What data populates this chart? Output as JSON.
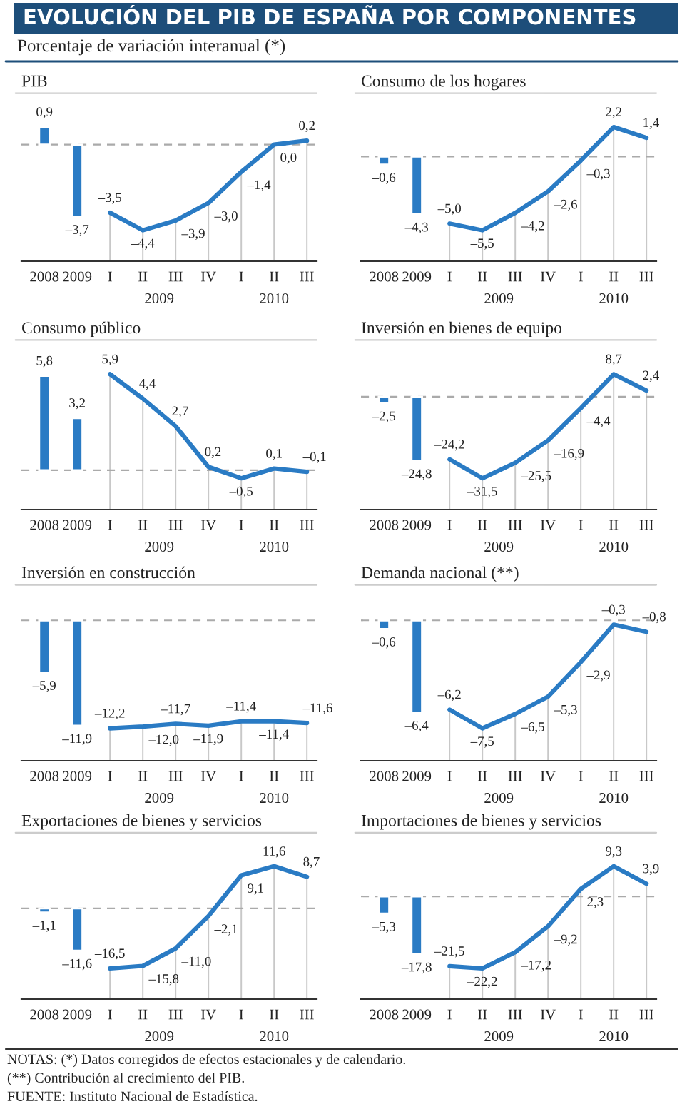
{
  "chart_data": [
    {
      "type": "other",
      "title": "EVOLUCIÓN DEL PIB DE ESPAÑA POR COMPONENTES",
      "subtitle": "Porcentaje de variación interanual (*)",
      "annotations": [
        "NOTAS: (*) Datos corregidos de efectos estacionales y de calendario.",
        "(**) Contribución al crecimiento del PIB.",
        "FUENTE: Instituto Nacional de Estadística."
      ]
    },
    {
      "type": "bar",
      "grid": "x",
      "title": "PIB",
      "categories": [
        "2008",
        "2009",
        "I",
        "II",
        "III",
        "IV",
        "I",
        "II",
        "III"
      ],
      "annotations": [
        "2009",
        "2010"
      ],
      "ref_lines": [
        {
          "axis": "y",
          "value": 0,
          "color": "#aaaaaa",
          "line_style": "dashed"
        }
      ],
      "series": [
        {
          "type": "bar",
          "color": "#2a7bc4",
          "values": [
            0.9,
            -3.7,
            null,
            null,
            null,
            null,
            null,
            null,
            null
          ],
          "value_labels": [
            "0,9",
            "–3,7",
            null,
            null,
            null,
            null,
            null,
            null,
            null
          ]
        },
        {
          "type": "line",
          "color": "#2a7bc4",
          "values": [
            null,
            null,
            -3.5,
            -4.4,
            -3.9,
            -3.0,
            -1.4,
            0.0,
            0.2
          ],
          "value_labels": [
            null,
            null,
            "–3,5",
            "–4,4",
            "–3,9",
            "–3,0",
            "–1,4",
            "0,0",
            "0,2"
          ]
        }
      ]
    },
    {
      "type": "bar",
      "grid": "x",
      "title": "Consumo de los hogares",
      "categories": [
        "2008",
        "2009",
        "I",
        "II",
        "III",
        "IV",
        "I",
        "II",
        "III"
      ],
      "annotations": [
        "2009",
        "2010"
      ],
      "ref_lines": [
        {
          "axis": "y",
          "value": 0,
          "color": "#aaaaaa",
          "line_style": "dashed"
        }
      ],
      "series": [
        {
          "type": "bar",
          "color": "#2a7bc4",
          "values": [
            -0.6,
            -4.3,
            null,
            null,
            null,
            null,
            null,
            null,
            null
          ],
          "value_labels": [
            "–0,6",
            "–4,3",
            null,
            null,
            null,
            null,
            null,
            null,
            null
          ]
        },
        {
          "type": "line",
          "color": "#2a7bc4",
          "values": [
            null,
            null,
            -5.0,
            -5.5,
            -4.2,
            -2.6,
            -0.3,
            2.2,
            1.4
          ],
          "value_labels": [
            null,
            null,
            "–5,0",
            "–5,5",
            "–4,2",
            "–2,6",
            "–0,3",
            "2,2",
            "1,4"
          ]
        }
      ]
    },
    {
      "type": "bar",
      "grid": "x",
      "title": "Consumo público",
      "categories": [
        "2008",
        "2009",
        "I",
        "II",
        "III",
        "IV",
        "I",
        "II",
        "III"
      ],
      "annotations": [
        "2009",
        "2010"
      ],
      "ref_lines": [
        {
          "axis": "y",
          "value": 0,
          "color": "#aaaaaa",
          "line_style": "dashed"
        }
      ],
      "series": [
        {
          "type": "bar",
          "color": "#2a7bc4",
          "values": [
            5.8,
            3.2,
            null,
            null,
            null,
            null,
            null,
            null,
            null
          ],
          "value_labels": [
            "5,8",
            "3,2",
            null,
            null,
            null,
            null,
            null,
            null,
            null
          ]
        },
        {
          "type": "line",
          "color": "#2a7bc4",
          "values": [
            null,
            null,
            5.9,
            4.4,
            2.7,
            0.2,
            -0.5,
            0.1,
            -0.1
          ],
          "value_labels": [
            null,
            null,
            "5,9",
            "4,4",
            "2,7",
            "0,2",
            "–0,5",
            "0,1",
            "–0,1"
          ]
        }
      ]
    },
    {
      "type": "bar",
      "grid": "x",
      "title": "Inversión en bienes de equipo",
      "categories": [
        "2008",
        "2009",
        "I",
        "II",
        "III",
        "IV",
        "I",
        "II",
        "III"
      ],
      "annotations": [
        "2009",
        "2010"
      ],
      "ref_lines": [
        {
          "axis": "y",
          "value": 0,
          "color": "#aaaaaa",
          "line_style": "dashed"
        }
      ],
      "series": [
        {
          "type": "bar",
          "color": "#2a7bc4",
          "values": [
            -2.5,
            -24.8,
            null,
            null,
            null,
            null,
            null,
            null,
            null
          ],
          "value_labels": [
            "–2,5",
            "–24,8",
            null,
            null,
            null,
            null,
            null,
            null,
            null
          ]
        },
        {
          "type": "line",
          "color": "#2a7bc4",
          "values": [
            null,
            null,
            -24.2,
            -31.5,
            -25.5,
            -16.9,
            -4.4,
            8.7,
            2.4
          ],
          "value_labels": [
            null,
            null,
            "–24,2",
            "–31,5",
            "–25,5",
            "–16,9",
            "–4,4",
            "8,7",
            "2,4"
          ]
        }
      ]
    },
    {
      "type": "bar",
      "grid": "x",
      "title": "Inversión en construcción",
      "categories": [
        "2008",
        "2009",
        "I",
        "II",
        "III",
        "IV",
        "I",
        "II",
        "III"
      ],
      "annotations": [
        "2009",
        "2010"
      ],
      "ref_lines": [
        {
          "axis": "y",
          "value": 0,
          "color": "#aaaaaa",
          "line_style": "dashed"
        }
      ],
      "series": [
        {
          "type": "bar",
          "color": "#2a7bc4",
          "values": [
            -5.9,
            -11.9,
            null,
            null,
            null,
            null,
            null,
            null,
            null
          ],
          "value_labels": [
            "–5,9",
            "–11,9",
            null,
            null,
            null,
            null,
            null,
            null,
            null
          ]
        },
        {
          "type": "line",
          "color": "#2a7bc4",
          "values": [
            null,
            null,
            -12.2,
            -12.0,
            -11.7,
            -11.9,
            -11.4,
            -11.4,
            -11.6
          ],
          "value_labels": [
            null,
            null,
            "–12,2",
            "–12,0",
            "–11,7",
            "–11,9",
            "–11,4",
            "–11,4",
            "–11,6"
          ]
        }
      ]
    },
    {
      "type": "bar",
      "grid": "x",
      "title": "Demanda nacional (**)",
      "categories": [
        "2008",
        "2009",
        "I",
        "II",
        "III",
        "IV",
        "I",
        "II",
        "III"
      ],
      "annotations": [
        "2009",
        "2010"
      ],
      "ref_lines": [
        {
          "axis": "y",
          "value": 0,
          "color": "#aaaaaa",
          "line_style": "dashed"
        }
      ],
      "series": [
        {
          "type": "bar",
          "color": "#2a7bc4",
          "values": [
            -0.6,
            -6.4,
            null,
            null,
            null,
            null,
            null,
            null,
            null
          ],
          "value_labels": [
            "–0,6",
            "–6,4",
            null,
            null,
            null,
            null,
            null,
            null,
            null
          ]
        },
        {
          "type": "line",
          "color": "#2a7bc4",
          "values": [
            null,
            null,
            -6.2,
            -7.5,
            -6.5,
            -5.3,
            -2.9,
            -0.3,
            -0.8
          ],
          "value_labels": [
            null,
            null,
            "–6,2",
            "–7,5",
            "–6,5",
            "–5,3",
            "–2,9",
            "–0,3",
            "–0,8"
          ]
        }
      ]
    },
    {
      "type": "bar",
      "grid": "x",
      "title": "Exportaciones de bienes y servicios",
      "categories": [
        "2008",
        "2009",
        "I",
        "II",
        "III",
        "IV",
        "I",
        "II",
        "III"
      ],
      "annotations": [
        "2009",
        "2010"
      ],
      "ref_lines": [
        {
          "axis": "y",
          "value": 0,
          "color": "#aaaaaa",
          "line_style": "dashed"
        }
      ],
      "series": [
        {
          "type": "bar",
          "color": "#2a7bc4",
          "values": [
            -1.1,
            -11.6,
            null,
            null,
            null,
            null,
            null,
            null,
            null
          ],
          "value_labels": [
            "–1,1",
            "–11,6",
            null,
            null,
            null,
            null,
            null,
            null,
            null
          ]
        },
        {
          "type": "line",
          "color": "#2a7bc4",
          "values": [
            null,
            null,
            -16.5,
            -15.8,
            -11.0,
            -2.1,
            9.1,
            11.6,
            8.7
          ],
          "value_labels": [
            null,
            null,
            "–16,5",
            "–15,8",
            "–11,0",
            "–2,1",
            "9,1",
            "11,6",
            "8,7"
          ]
        }
      ]
    },
    {
      "type": "bar",
      "grid": "x",
      "title": "Importaciones de bienes y servicios",
      "categories": [
        "2008",
        "2009",
        "I",
        "II",
        "III",
        "IV",
        "I",
        "II",
        "III"
      ],
      "annotations": [
        "2009",
        "2010"
      ],
      "ref_lines": [
        {
          "axis": "y",
          "value": 0,
          "color": "#aaaaaa",
          "line_style": "dashed"
        }
      ],
      "series": [
        {
          "type": "bar",
          "color": "#2a7bc4",
          "values": [
            -5.3,
            -17.8,
            null,
            null,
            null,
            null,
            null,
            null,
            null
          ],
          "value_labels": [
            "–5,3",
            "–17,8",
            null,
            null,
            null,
            null,
            null,
            null,
            null
          ]
        },
        {
          "type": "line",
          "color": "#2a7bc4",
          "values": [
            null,
            null,
            -21.5,
            -22.2,
            -17.2,
            -9.2,
            2.3,
            9.3,
            3.9
          ],
          "value_labels": [
            null,
            null,
            "–21,5",
            "–22,2",
            "–17,2",
            "–9,2",
            "2,3",
            "9,3",
            "3,9"
          ]
        }
      ]
    }
  ]
}
